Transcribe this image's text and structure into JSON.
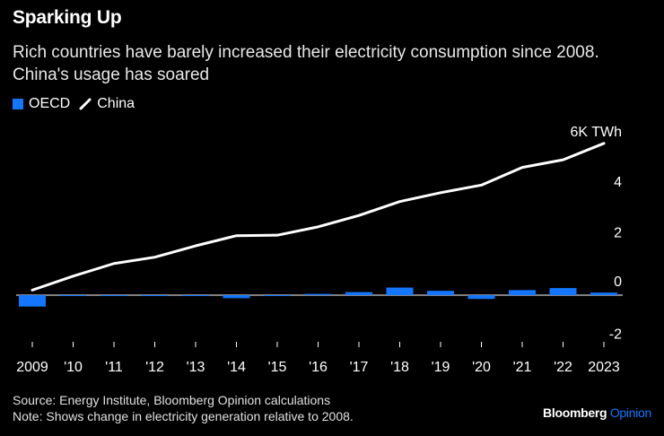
{
  "header": {
    "title": "Sparking Up",
    "subtitle": "Rich countries have barely increased their electricity consumption since 2008. China's usage has soared"
  },
  "legend": {
    "oecd": "OECD",
    "china": "China"
  },
  "colors": {
    "oecd": "#1476ff",
    "china": "#ffffff",
    "zero_line": "#ffffff",
    "tick": "#ffffff"
  },
  "chart_data": {
    "type": "bar+line",
    "title": "Sparking Up",
    "xlabel": "",
    "ylabel": "",
    "unit_label": "6K TWh",
    "categories": [
      "2009",
      "'10",
      "'11",
      "'12",
      "'13",
      "'14",
      "'15",
      "'16",
      "'17",
      "'18",
      "'19",
      "'20",
      "'21",
      "'22",
      "2023"
    ],
    "y_ticks": [
      {
        "value": 6,
        "label": "6K TWh"
      },
      {
        "value": 4,
        "label": "4"
      },
      {
        "value": 2,
        "label": "2"
      },
      {
        "value": 0,
        "label": "0"
      },
      {
        "value": -2,
        "label": "-2"
      }
    ],
    "ylim": [
      -2.5,
      6.5
    ],
    "series": [
      {
        "name": "OECD",
        "kind": "bar",
        "values": [
          -0.45,
          0.0,
          -0.03,
          -0.03,
          -0.03,
          -0.12,
          -0.02,
          0.05,
          0.12,
          0.3,
          0.17,
          -0.15,
          0.2,
          0.28,
          0.1
        ]
      },
      {
        "name": "China",
        "kind": "line",
        "values": [
          0.2,
          0.75,
          1.25,
          1.5,
          1.95,
          2.35,
          2.37,
          2.7,
          3.15,
          3.7,
          4.05,
          4.35,
          5.05,
          5.35,
          6.0
        ]
      }
    ]
  },
  "footer": {
    "source": "Source: Energy Institute, Bloomberg Opinion calculations",
    "note": "Note: Shows change in electricity generation relative to 2008."
  },
  "brand": {
    "part1": "Bloomberg",
    "part2": "Opinion"
  }
}
